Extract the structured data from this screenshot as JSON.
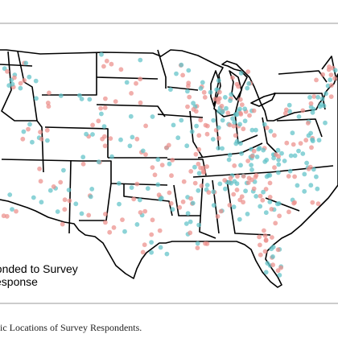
{
  "legend": {
    "item_1": "ponded to Survey",
    "item_2": "esponse"
  },
  "caption": "phic Locations of Survey Respondents.",
  "colors": {
    "responded": "#5fc2c8",
    "not_responded": "#ec8f8a",
    "state_borders": "#000000",
    "frame_rule": "#9a9a9a"
  },
  "series": [
    {
      "key": "responded",
      "color": "#5fc2c8"
    },
    {
      "key": "not_responded",
      "color": "#ec8f8a"
    }
  ]
}
